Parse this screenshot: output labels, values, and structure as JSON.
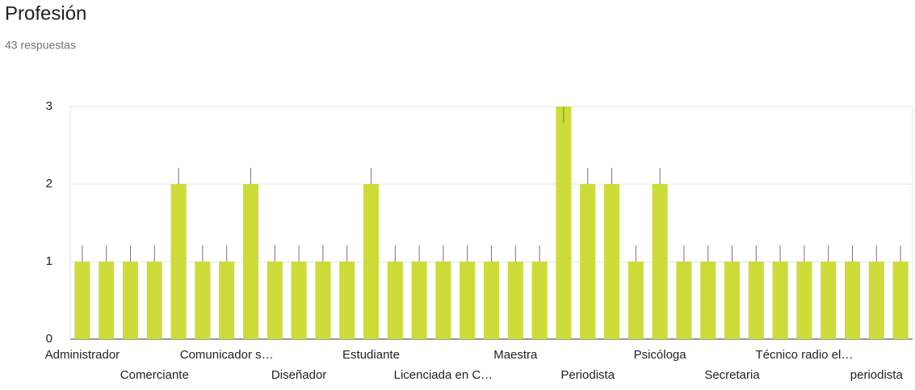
{
  "title": "Profesión",
  "subtitle": "43 respuestas",
  "chart_data": {
    "type": "bar",
    "color": "#cddc39",
    "grid": true,
    "categories": [
      "Administrador",
      null,
      null,
      "Comerciante",
      null,
      null,
      "Comunicador s…",
      null,
      null,
      "Diseñador",
      null,
      null,
      "Estudiante",
      null,
      null,
      "Licenciada en C…",
      null,
      null,
      "Maestra",
      null,
      null,
      "Periodista",
      null,
      null,
      "Psicóloga",
      null,
      null,
      "Secretaria",
      null,
      null,
      "Técnico radio el…",
      null,
      null,
      "periodista",
      null
    ],
    "values": [
      1,
      1,
      1,
      1,
      2,
      1,
      1,
      2,
      1,
      1,
      1,
      1,
      2,
      1,
      1,
      1,
      1,
      1,
      1,
      1,
      3,
      2,
      2,
      1,
      2,
      1,
      1,
      1,
      1,
      1,
      1,
      1,
      1,
      1,
      1
    ],
    "ylim": [
      0,
      3
    ],
    "yticks": [
      0,
      1,
      2,
      3
    ]
  }
}
